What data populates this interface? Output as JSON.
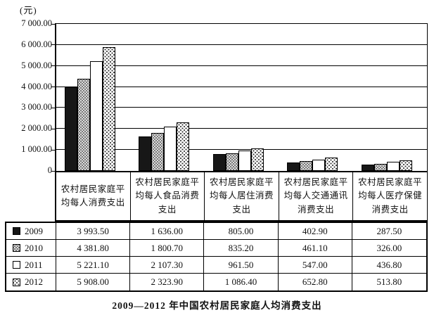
{
  "unit_label": "(元)",
  "title": "2009—2012 年中国农村居民家庭人均消费支出",
  "colors": {
    "foreground": "#111111",
    "background": "#ffffff",
    "bar_2009": "#171717",
    "bar_2010_base": "#dcdcdc",
    "bar_2011": "#ffffff",
    "bar_2012_base": "#ffffff",
    "grid": "#000000"
  },
  "chart_data": {
    "type": "bar",
    "title": "2009—2012 年中国农村居民家庭人均消费支出",
    "ylabel": "(元)",
    "unit": "元",
    "grid": true,
    "legend_position": "table-left-column",
    "categories": [
      "农村居民家庭平均每人消费支出",
      "农村居民家庭平均每人食品消费支出",
      "农村居民家庭平均每人居住消费支出",
      "农村居民家庭平均每人交通通讯消费支出",
      "农村居民家庭平均每人医疗保健消费支出"
    ],
    "series": [
      {
        "name": "2009",
        "pattern": "solid-black",
        "values": [
          3993.5,
          1636.0,
          805.0,
          402.9,
          287.5
        ]
      },
      {
        "name": "2010",
        "pattern": "gray-checker",
        "values": [
          4381.8,
          1800.7,
          835.2,
          461.1,
          326.0
        ]
      },
      {
        "name": "2011",
        "pattern": "white",
        "values": [
          5221.1,
          2107.3,
          961.5,
          547.0,
          436.8
        ]
      },
      {
        "name": "2012",
        "pattern": "white-dotted",
        "values": [
          5908.0,
          2323.9,
          1086.4,
          652.8,
          513.8
        ]
      }
    ],
    "y_axis": {
      "min": 0,
      "max": 7000,
      "tick_interval": 1000,
      "tick_labels": [
        "7 000.00",
        "6 000.00",
        "5 000.00",
        "4 000.00",
        "3 000.00",
        "2 000.00",
        "1 000.00",
        "0"
      ]
    }
  },
  "table": {
    "rows": [
      {
        "year": "2009",
        "values": [
          "3 993.50",
          "1 636.00",
          "805.00",
          "402.90",
          "287.50"
        ]
      },
      {
        "year": "2010",
        "values": [
          "4 381.80",
          "1 800.70",
          "835.20",
          "461.10",
          "326.00"
        ]
      },
      {
        "year": "2011",
        "values": [
          "5 221.10",
          "2 107.30",
          "961.50",
          "547.00",
          "436.80"
        ]
      },
      {
        "year": "2012",
        "values": [
          "5 908.00",
          "2 323.90",
          "1 086.40",
          "652.80",
          "513.80"
        ]
      }
    ]
  }
}
